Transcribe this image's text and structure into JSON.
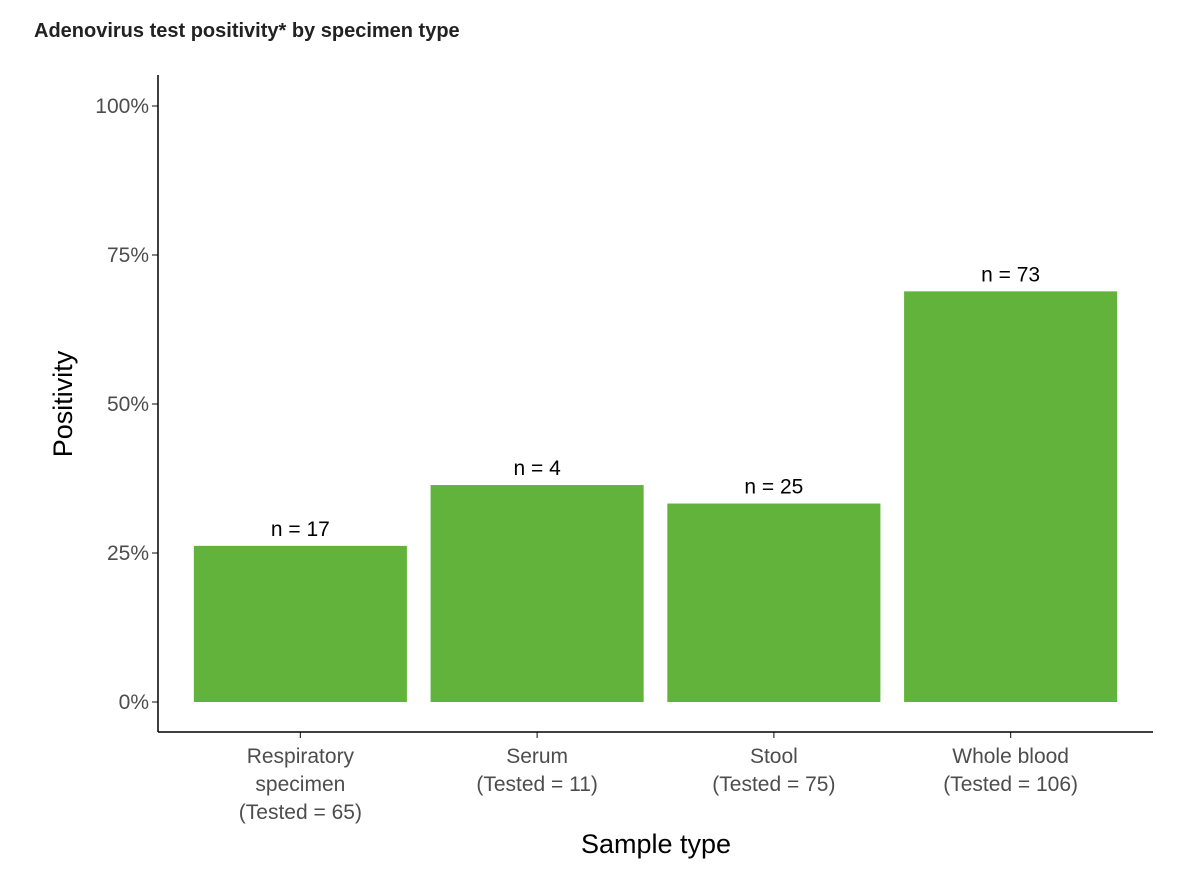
{
  "chart_data": {
    "type": "bar",
    "title": "Adenovirus test positivity* by specimen type",
    "xlabel": "Sample type",
    "ylabel": "Positivity",
    "categories": [
      [
        "Respiratory",
        "specimen",
        "(Tested = 65)"
      ],
      [
        "Serum",
        "(Tested = 11)"
      ],
      [
        "Stool",
        "(Tested = 75)"
      ],
      [
        "Whole blood",
        "(Tested = 106)"
      ]
    ],
    "values": [
      26.2,
      36.4,
      33.3,
      68.9
    ],
    "data_labels": [
      "n = 17",
      "n = 4",
      "n = 25",
      "n = 73"
    ],
    "ylim": [
      0,
      100
    ],
    "yticks": [
      0,
      25,
      50,
      75,
      100
    ],
    "ytick_labels": [
      "0%",
      "25%",
      "50%",
      "75%",
      "100%"
    ],
    "grid": false,
    "bar_color": "#62b33b"
  }
}
